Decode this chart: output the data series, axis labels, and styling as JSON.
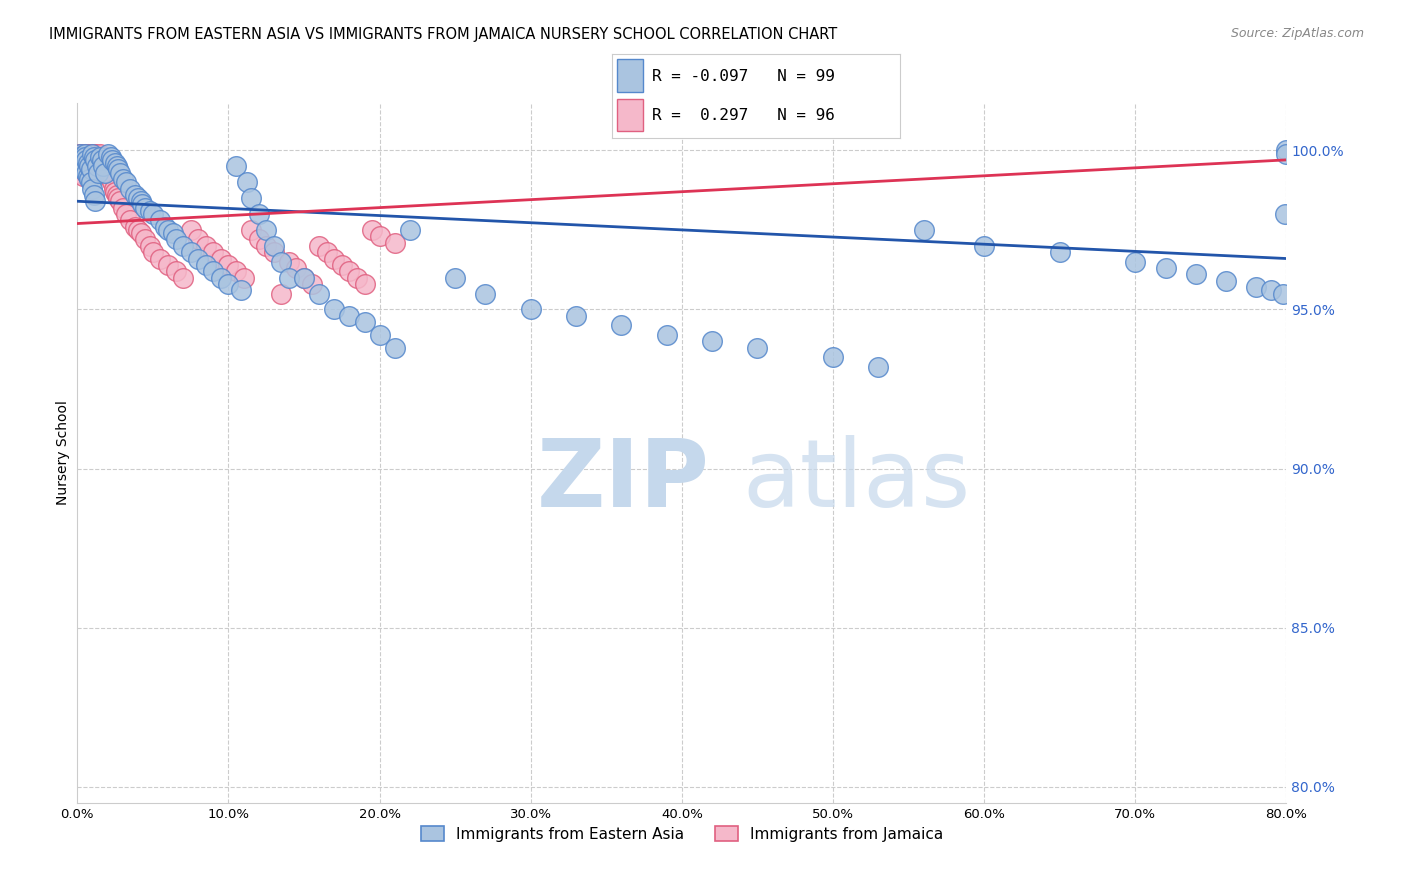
{
  "title": "IMMIGRANTS FROM EASTERN ASIA VS IMMIGRANTS FROM JAMAICA NURSERY SCHOOL CORRELATION CHART",
  "source": "Source: ZipAtlas.com",
  "ylabel": "Nursery School",
  "ylabel_right_labels": [
    "100.0%",
    "95.0%",
    "90.0%",
    "85.0%",
    "80.0%"
  ],
  "ylabel_right_values": [
    1.0,
    0.95,
    0.9,
    0.85,
    0.8
  ],
  "legend_blue_label": "Immigrants from Eastern Asia",
  "legend_pink_label": "Immigrants from Jamaica",
  "R_blue": -0.097,
  "N_blue": 99,
  "R_pink": 0.297,
  "N_pink": 96,
  "blue_color": "#aac4e0",
  "blue_edge_color": "#5588cc",
  "pink_color": "#f5b8ca",
  "pink_edge_color": "#e06080",
  "blue_line_color": "#2255aa",
  "pink_line_color": "#dd3355",
  "watermark_zip_color": "#c5d8ec",
  "watermark_atlas_color": "#c5d8ec",
  "xlim": [
    0.0,
    0.8
  ],
  "ylim": [
    0.795,
    1.015
  ],
  "blue_line_y0": 0.984,
  "blue_line_y1": 0.966,
  "pink_line_y0": 0.977,
  "pink_line_y1": 0.997,
  "blue_x": [
    0.001,
    0.002,
    0.002,
    0.003,
    0.003,
    0.004,
    0.004,
    0.005,
    0.005,
    0.005,
    0.006,
    0.006,
    0.007,
    0.007,
    0.008,
    0.008,
    0.009,
    0.009,
    0.01,
    0.01,
    0.011,
    0.011,
    0.012,
    0.012,
    0.013,
    0.014,
    0.015,
    0.016,
    0.017,
    0.018,
    0.02,
    0.022,
    0.023,
    0.025,
    0.026,
    0.027,
    0.028,
    0.03,
    0.032,
    0.035,
    0.038,
    0.04,
    0.042,
    0.043,
    0.045,
    0.048,
    0.05,
    0.055,
    0.058,
    0.06,
    0.063,
    0.065,
    0.07,
    0.075,
    0.08,
    0.085,
    0.09,
    0.095,
    0.1,
    0.105,
    0.108,
    0.112,
    0.115,
    0.12,
    0.125,
    0.13,
    0.135,
    0.14,
    0.15,
    0.16,
    0.17,
    0.18,
    0.19,
    0.2,
    0.21,
    0.22,
    0.25,
    0.27,
    0.3,
    0.33,
    0.36,
    0.39,
    0.42,
    0.45,
    0.5,
    0.53,
    0.56,
    0.6,
    0.65,
    0.7,
    0.72,
    0.74,
    0.76,
    0.78,
    0.79,
    0.798,
    0.799,
    0.8,
    0.8
  ],
  "blue_y": [
    0.997,
    0.999,
    0.998,
    0.997,
    0.995,
    0.996,
    0.994,
    0.999,
    0.998,
    0.995,
    0.997,
    0.993,
    0.996,
    0.992,
    0.995,
    0.991,
    0.994,
    0.99,
    0.999,
    0.988,
    0.998,
    0.986,
    0.997,
    0.984,
    0.995,
    0.993,
    0.998,
    0.997,
    0.995,
    0.993,
    0.999,
    0.998,
    0.997,
    0.996,
    0.995,
    0.994,
    0.993,
    0.991,
    0.99,
    0.988,
    0.986,
    0.985,
    0.984,
    0.983,
    0.982,
    0.981,
    0.98,
    0.978,
    0.976,
    0.975,
    0.974,
    0.972,
    0.97,
    0.968,
    0.966,
    0.964,
    0.962,
    0.96,
    0.958,
    0.995,
    0.956,
    0.99,
    0.985,
    0.98,
    0.975,
    0.97,
    0.965,
    0.96,
    0.96,
    0.955,
    0.95,
    0.948,
    0.946,
    0.942,
    0.938,
    0.975,
    0.96,
    0.955,
    0.95,
    0.948,
    0.945,
    0.942,
    0.94,
    0.938,
    0.935,
    0.932,
    0.975,
    0.97,
    0.968,
    0.965,
    0.963,
    0.961,
    0.959,
    0.957,
    0.956,
    0.955,
    0.98,
    1.0,
    0.999
  ],
  "pink_x": [
    0.001,
    0.001,
    0.002,
    0.002,
    0.002,
    0.003,
    0.003,
    0.003,
    0.004,
    0.004,
    0.004,
    0.005,
    0.005,
    0.005,
    0.006,
    0.006,
    0.006,
    0.007,
    0.007,
    0.007,
    0.008,
    0.008,
    0.008,
    0.009,
    0.009,
    0.01,
    0.01,
    0.01,
    0.011,
    0.011,
    0.011,
    0.012,
    0.012,
    0.013,
    0.013,
    0.014,
    0.014,
    0.015,
    0.015,
    0.016,
    0.016,
    0.017,
    0.017,
    0.018,
    0.018,
    0.019,
    0.019,
    0.02,
    0.021,
    0.022,
    0.023,
    0.024,
    0.025,
    0.026,
    0.027,
    0.028,
    0.03,
    0.032,
    0.035,
    0.038,
    0.04,
    0.042,
    0.045,
    0.048,
    0.05,
    0.055,
    0.06,
    0.065,
    0.07,
    0.075,
    0.08,
    0.085,
    0.09,
    0.095,
    0.1,
    0.105,
    0.11,
    0.115,
    0.12,
    0.125,
    0.13,
    0.135,
    0.14,
    0.145,
    0.15,
    0.155,
    0.16,
    0.165,
    0.17,
    0.175,
    0.18,
    0.185,
    0.19,
    0.195,
    0.2,
    0.21
  ],
  "pink_y": [
    0.999,
    0.997,
    0.998,
    0.995,
    0.993,
    0.999,
    0.997,
    0.994,
    0.998,
    0.996,
    0.992,
    0.999,
    0.997,
    0.994,
    0.998,
    0.996,
    0.993,
    0.999,
    0.997,
    0.994,
    0.998,
    0.996,
    0.993,
    0.999,
    0.997,
    0.999,
    0.997,
    0.994,
    0.999,
    0.997,
    0.994,
    0.999,
    0.997,
    0.998,
    0.995,
    0.998,
    0.995,
    0.999,
    0.996,
    0.998,
    0.995,
    0.997,
    0.994,
    0.997,
    0.994,
    0.996,
    0.993,
    0.995,
    0.993,
    0.991,
    0.99,
    0.988,
    0.987,
    0.986,
    0.985,
    0.984,
    0.982,
    0.98,
    0.978,
    0.976,
    0.975,
    0.974,
    0.972,
    0.97,
    0.968,
    0.966,
    0.964,
    0.962,
    0.96,
    0.975,
    0.972,
    0.97,
    0.968,
    0.966,
    0.964,
    0.962,
    0.96,
    0.975,
    0.972,
    0.97,
    0.968,
    0.955,
    0.965,
    0.963,
    0.96,
    0.958,
    0.97,
    0.968,
    0.966,
    0.964,
    0.962,
    0.96,
    0.958,
    0.975,
    0.973,
    0.971
  ]
}
